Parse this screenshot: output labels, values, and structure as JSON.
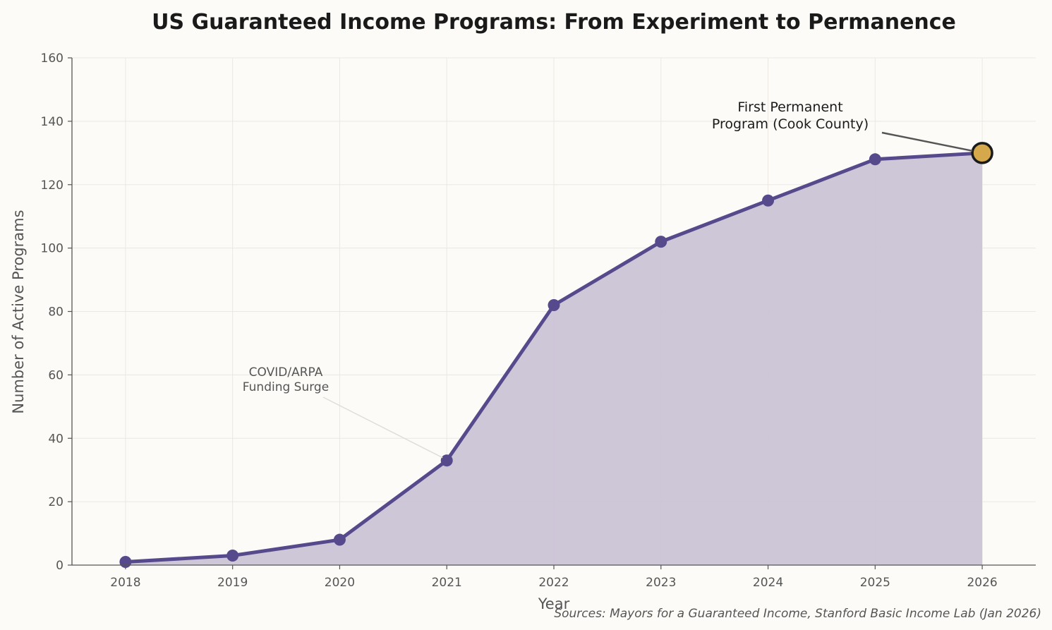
{
  "chart_data": {
    "type": "line",
    "title": "US Guaranteed Income Programs: From Experiment to Permanence",
    "xlabel": "Year",
    "ylabel": "Number of Active Programs",
    "x": [
      2018,
      2019,
      2020,
      2021,
      2022,
      2023,
      2024,
      2025,
      2026
    ],
    "values": [
      1,
      3,
      8,
      33,
      82,
      102,
      115,
      128,
      130
    ],
    "xlim": [
      2017.5,
      2026.5
    ],
    "ylim": [
      0,
      160
    ],
    "yticks": [
      0,
      20,
      40,
      60,
      80,
      100,
      120,
      140,
      160
    ],
    "xticks": [
      2018,
      2019,
      2020,
      2021,
      2022,
      2023,
      2024,
      2025,
      2026
    ],
    "grid": true,
    "area_fill": true,
    "colors": {
      "line": "#574a8c",
      "fill": "#cbc4d6",
      "highlight": "#d4a84b",
      "highlight_edge": "#1a1a1a"
    },
    "annotations": [
      {
        "lines": [
          "First Permanent",
          "Program (Cook County)"
        ],
        "target": [
          2026,
          130
        ]
      },
      {
        "lines": [
          "COVID/ARPA",
          "Funding Surge"
        ],
        "target": [
          2021,
          33
        ]
      }
    ],
    "source": "Sources: Mayors for a Guaranteed Income, Stanford Basic Income Lab (Jan 2026)"
  }
}
